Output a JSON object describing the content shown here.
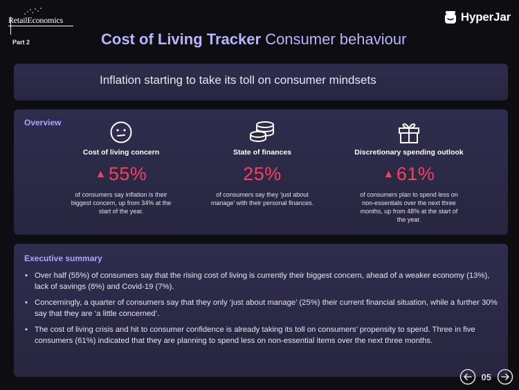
{
  "header": {
    "logo_text": "RetailEconomics",
    "part_label": "Part 2",
    "title_bold": "Cost of Living Tracker",
    "title_light": "Consumer behaviour",
    "brand_name": "HyperJar"
  },
  "banner": {
    "text": "Inflation starting to take its toll on consumer mindsets"
  },
  "overview": {
    "heading": "Overview",
    "metrics": [
      {
        "icon": "neutral-face-icon",
        "title": "Cost of living concern",
        "arrow": "▲",
        "value": "55%",
        "description": "of consumers say inflation is their biggest concern, up from 34% at the start of the year."
      },
      {
        "icon": "coins-stack-icon",
        "title": "State of finances",
        "arrow": "",
        "value": "25%",
        "description": "of consumers say they ‘just about manage’ with their personal finances."
      },
      {
        "icon": "gift-icon",
        "title": "Discretionary spending outlook",
        "arrow": "▲",
        "value": "61%",
        "description": "of consumers plan to spend less on non-essentials over the next three months, up from 48% at the start of the year."
      }
    ]
  },
  "executive_summary": {
    "heading": "Executive summary",
    "bullets": [
      "Over half (55%) of consumers say that the rising cost of living is currently their biggest concern, ahead of a weaker economy (13%), lack of savings (8%) and Covid-19 (7%).",
      "Concerningly, a quarter of consumers say that they only ‘just about manage’ (25%) their current financial situation, while a further 30% say that they are ‘a little concerned’.",
      "The cost of living crisis and hit to consumer confidence is already taking its toll on consumers’ propensity to spend. Three in five consumers (61%) indicated that they are planning to spend less on non-essential items over the next three months."
    ]
  },
  "pager": {
    "page_number": "05"
  },
  "colors": {
    "accent_purple": "#b7b5ff",
    "highlight_red": "#ff3d5e",
    "panel_bg": "#2e2d4e",
    "page_bg": "#0d0d12"
  }
}
